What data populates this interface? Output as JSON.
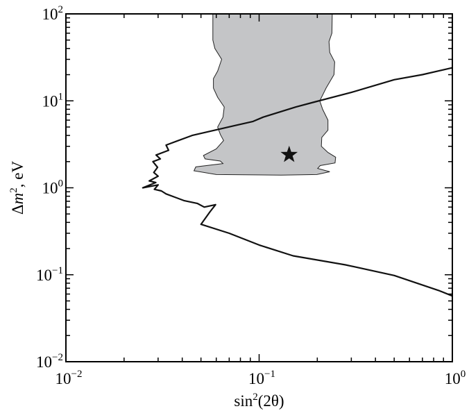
{
  "chart_data": {
    "type": "area",
    "xscale": "log",
    "yscale": "log",
    "xlim": [
      0.01,
      1
    ],
    "ylim": [
      0.01,
      100
    ],
    "grid": false,
    "x_ticks": [
      {
        "value": 0.01,
        "base": "10",
        "exp": "−2"
      },
      {
        "value": 0.1,
        "base": "10",
        "exp": "−1"
      },
      {
        "value": 1,
        "base": "10",
        "exp": "0"
      }
    ],
    "y_ticks": [
      {
        "value": 0.01,
        "base": "10",
        "exp": "−2"
      },
      {
        "value": 0.1,
        "base": "10",
        "exp": "−1"
      },
      {
        "value": 1,
        "base": "10",
        "exp": "0"
      },
      {
        "value": 10,
        "base": "10",
        "exp": "1"
      },
      {
        "value": 100,
        "base": "10",
        "exp": "2"
      }
    ],
    "xlabel": {
      "pre": "sin",
      "sup": "2",
      "post": "(2θ)"
    },
    "ylabel": {
      "pre": "Δ",
      "italic": "m",
      "sup": "2",
      "post": ", eV"
    },
    "colors": {
      "region": "#c4c5c7",
      "line": "#111111",
      "star": "#111111"
    },
    "series": [
      {
        "kind": "region",
        "points": [
          [
            0.0576,
            100
          ],
          [
            0.0576,
            50
          ],
          [
            0.059,
            40
          ],
          [
            0.064,
            30
          ],
          [
            0.061,
            22
          ],
          [
            0.058,
            18
          ],
          [
            0.058,
            14
          ],
          [
            0.061,
            11
          ],
          [
            0.066,
            8.5
          ],
          [
            0.065,
            6.5
          ],
          [
            0.061,
            5.0
          ],
          [
            0.063,
            4.1
          ],
          [
            0.0655,
            3.5
          ],
          [
            0.06,
            2.8
          ],
          [
            0.0515,
            2.35
          ],
          [
            0.0525,
            2.15
          ],
          [
            0.063,
            2.03
          ],
          [
            0.065,
            1.9
          ],
          [
            0.047,
            1.74
          ],
          [
            0.046,
            1.57
          ],
          [
            0.06,
            1.42
          ],
          [
            0.13,
            1.4
          ],
          [
            0.199,
            1.42
          ],
          [
            0.232,
            1.53
          ],
          [
            0.201,
            1.67
          ],
          [
            0.207,
            1.8
          ],
          [
            0.247,
            1.93
          ],
          [
            0.249,
            2.25
          ],
          [
            0.227,
            2.55
          ],
          [
            0.21,
            3.0
          ],
          [
            0.211,
            3.8
          ],
          [
            0.227,
            4.6
          ],
          [
            0.227,
            6.0
          ],
          [
            0.213,
            8.0
          ],
          [
            0.206,
            10
          ],
          [
            0.222,
            14
          ],
          [
            0.244,
            20
          ],
          [
            0.246,
            28
          ],
          [
            0.232,
            36
          ],
          [
            0.23,
            48
          ],
          [
            0.238,
            60
          ],
          [
            0.239,
            100
          ]
        ]
      },
      {
        "kind": "contour",
        "points": [
          [
            1.0,
            24
          ],
          [
            0.7,
            20
          ],
          [
            0.5,
            17.5
          ],
          [
            0.3,
            12.5
          ],
          [
            0.19,
            9.6
          ],
          [
            0.155,
            8.5
          ],
          [
            0.105,
            6.5
          ],
          [
            0.093,
            5.8
          ],
          [
            0.075,
            5.2
          ],
          [
            0.045,
            4.0
          ],
          [
            0.033,
            3.1
          ],
          [
            0.034,
            2.7
          ],
          [
            0.0293,
            2.38
          ],
          [
            0.0308,
            2.15
          ],
          [
            0.0282,
            2.0
          ],
          [
            0.0298,
            1.72
          ],
          [
            0.0285,
            1.5
          ],
          [
            0.03,
            1.36
          ],
          [
            0.027,
            1.2
          ],
          [
            0.0292,
            1.15
          ],
          [
            0.025,
            1.0
          ],
          [
            0.03,
            1.08
          ],
          [
            0.0287,
            0.96
          ],
          [
            0.0312,
            0.92
          ],
          [
            0.033,
            0.85
          ],
          [
            0.041,
            0.71
          ],
          [
            0.048,
            0.66
          ],
          [
            0.052,
            0.6
          ],
          [
            0.0595,
            0.64
          ],
          [
            0.0557,
            0.53
          ],
          [
            0.05,
            0.38
          ],
          [
            0.07,
            0.3
          ],
          [
            0.1,
            0.22
          ],
          [
            0.15,
            0.165
          ],
          [
            0.28,
            0.13
          ],
          [
            0.5,
            0.098
          ],
          [
            0.85,
            0.066
          ],
          [
            1.0,
            0.057
          ]
        ]
      }
    ],
    "marker": {
      "shape": "star",
      "x": 0.143,
      "y": 2.4
    }
  }
}
